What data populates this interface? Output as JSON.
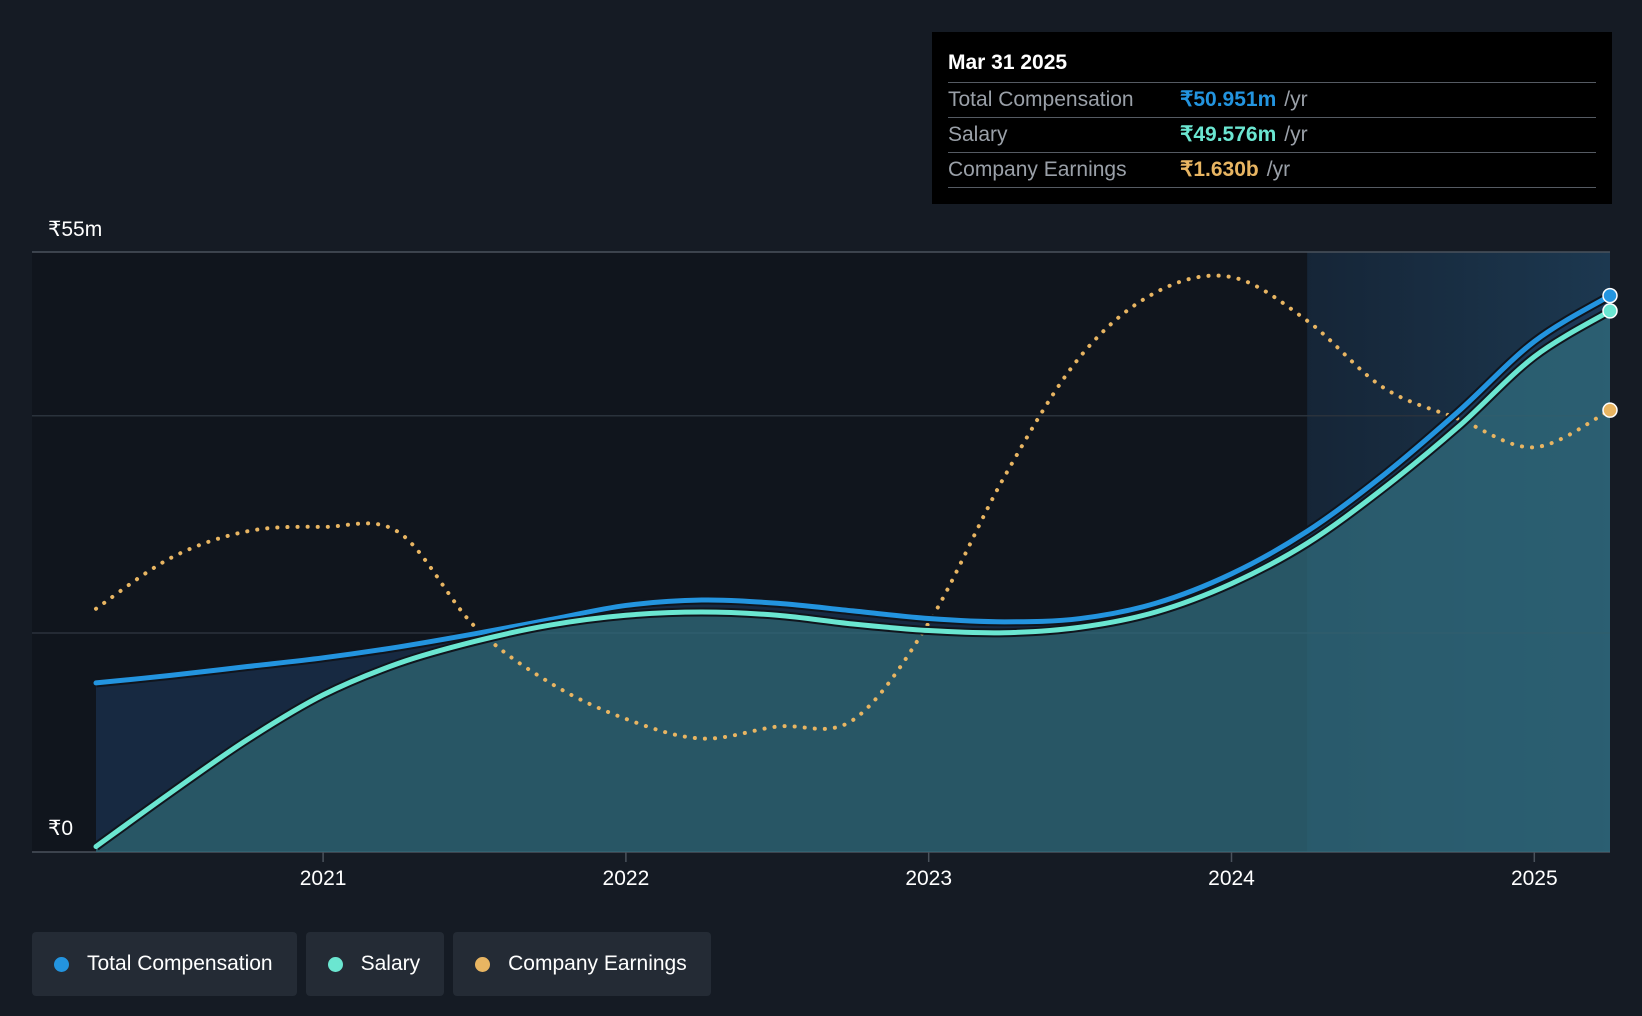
{
  "tooltip": {
    "date": "Mar 31 2025",
    "rows": [
      {
        "name": "Total Compensation",
        "value": "₹50.951m",
        "unit": "/yr",
        "color": "#2394df"
      },
      {
        "name": "Salary",
        "value": "₹49.576m",
        "unit": "/yr",
        "color": "#6be6d1"
      },
      {
        "name": "Company Earnings",
        "value": "₹1.630b",
        "unit": "/yr",
        "color": "#e8b562"
      }
    ]
  },
  "legend": [
    {
      "label": "Total Compensation",
      "color": "#2394df"
    },
    {
      "label": "Salary",
      "color": "#6be6d1"
    },
    {
      "label": "Company Earnings",
      "color": "#e8b562"
    }
  ],
  "chart_data": {
    "type": "line",
    "y_axis": {
      "min": 0,
      "max": 55,
      "unit": "₹m",
      "top_label": "₹55m",
      "bottom_label": "₹0"
    },
    "x_ticks": [
      "2021",
      "2022",
      "2023",
      "2024",
      "2025"
    ],
    "x_range": [
      2020.25,
      2025.25
    ],
    "forecast_shade_start": 2024.25,
    "grid": true,
    "series": [
      {
        "name": "Total Compensation",
        "color": "#2394df",
        "style": "solid",
        "points": [
          [
            2020.25,
            15.5
          ],
          [
            2020.5,
            16.2
          ],
          [
            2020.75,
            17.0
          ],
          [
            2021.0,
            17.8
          ],
          [
            2021.25,
            18.8
          ],
          [
            2021.5,
            20.0
          ],
          [
            2021.75,
            21.3
          ],
          [
            2022.0,
            22.6
          ],
          [
            2022.25,
            23.1
          ],
          [
            2022.5,
            22.8
          ],
          [
            2022.75,
            22.1
          ],
          [
            2023.0,
            21.4
          ],
          [
            2023.25,
            21.1
          ],
          [
            2023.5,
            21.4
          ],
          [
            2023.75,
            22.8
          ],
          [
            2024.0,
            25.5
          ],
          [
            2024.25,
            29.4
          ],
          [
            2024.5,
            34.5
          ],
          [
            2024.75,
            40.4
          ],
          [
            2025.0,
            46.8
          ],
          [
            2025.25,
            51.0
          ]
        ]
      },
      {
        "name": "Salary",
        "color": "#6be6d1",
        "style": "solid",
        "points": [
          [
            2020.25,
            0.5
          ],
          [
            2020.5,
            5.5
          ],
          [
            2020.75,
            10.3
          ],
          [
            2021.0,
            14.4
          ],
          [
            2021.25,
            17.3
          ],
          [
            2021.5,
            19.3
          ],
          [
            2021.75,
            20.8
          ],
          [
            2022.0,
            21.7
          ],
          [
            2022.25,
            22.0
          ],
          [
            2022.5,
            21.7
          ],
          [
            2022.75,
            20.9
          ],
          [
            2023.0,
            20.3
          ],
          [
            2023.25,
            20.1
          ],
          [
            2023.5,
            20.6
          ],
          [
            2023.75,
            22.0
          ],
          [
            2024.0,
            24.6
          ],
          [
            2024.25,
            28.3
          ],
          [
            2024.5,
            33.3
          ],
          [
            2024.75,
            39.0
          ],
          [
            2025.0,
            45.4
          ],
          [
            2025.25,
            49.6
          ]
        ]
      },
      {
        "name": "Company Earnings",
        "color": "#e8b562",
        "style": "dotted",
        "points": [
          [
            2020.25,
            22.3
          ],
          [
            2020.5,
            27.0
          ],
          [
            2020.75,
            29.4
          ],
          [
            2021.0,
            29.8
          ],
          [
            2021.25,
            29.3
          ],
          [
            2021.5,
            20.7
          ],
          [
            2021.75,
            15.5
          ],
          [
            2022.0,
            12.2
          ],
          [
            2022.25,
            10.4
          ],
          [
            2022.5,
            11.5
          ],
          [
            2022.75,
            12.1
          ],
          [
            2023.0,
            21.0
          ],
          [
            2023.25,
            34.4
          ],
          [
            2023.5,
            45.4
          ],
          [
            2023.75,
            51.3
          ],
          [
            2024.0,
            52.7
          ],
          [
            2024.25,
            48.7
          ],
          [
            2024.5,
            42.6
          ],
          [
            2024.75,
            39.7
          ],
          [
            2025.0,
            37.1
          ],
          [
            2025.25,
            40.5
          ]
        ]
      }
    ]
  }
}
